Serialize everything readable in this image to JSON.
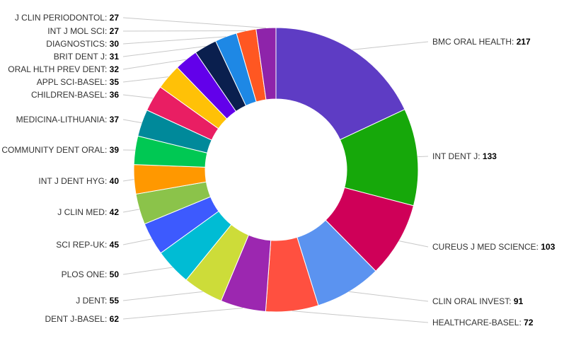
{
  "chart_data": {
    "type": "pie",
    "donut": true,
    "slices": [
      {
        "name": "BMC ORAL HEALTH",
        "value": 217,
        "color": "#5e3cc4"
      },
      {
        "name": "INT DENT J",
        "value": 133,
        "color": "#16a80a"
      },
      {
        "name": "CUREUS J MED SCIENCE",
        "value": 103,
        "color": "#cf0058"
      },
      {
        "name": "CLIN ORAL INVEST",
        "value": 91,
        "color": "#5b93f0"
      },
      {
        "name": "HEALTHCARE-BASEL",
        "value": 72,
        "color": "#ff5040"
      },
      {
        "name": "DENT J-BASEL",
        "value": 62,
        "color": "#9c27b0"
      },
      {
        "name": "J DENT",
        "value": 55,
        "color": "#cddc39"
      },
      {
        "name": "PLOS ONE",
        "value": 50,
        "color": "#00bcd4"
      },
      {
        "name": "SCI REP-UK",
        "value": 45,
        "color": "#3d5afe"
      },
      {
        "name": "J CLIN MED",
        "value": 42,
        "color": "#8bc34a"
      },
      {
        "name": "INT J DENT HYG",
        "value": 40,
        "color": "#ff9800"
      },
      {
        "name": "COMMUNITY DENT ORAL",
        "value": 39,
        "color": "#00c853"
      },
      {
        "name": "MEDICINA-LITHUANIA",
        "value": 37,
        "color": "#00899a"
      },
      {
        "name": "CHILDREN-BASEL",
        "value": 36,
        "color": "#e91e63"
      },
      {
        "name": "APPL SCI-BASEL",
        "value": 35,
        "color": "#ffc107"
      },
      {
        "name": "ORAL HLTH PREV DENT",
        "value": 32,
        "color": "#6200ea"
      },
      {
        "name": "BRIT DENT J",
        "value": 31,
        "color": "#0a1f4e"
      },
      {
        "name": "DIAGNOSTICS",
        "value": 30,
        "color": "#1e88e5"
      },
      {
        "name": "INT J MOL SCI",
        "value": 27,
        "color": "#ff5722"
      },
      {
        "name": "J CLIN PERIODONTOL",
        "value": 27,
        "color": "#8e24aa"
      }
    ]
  }
}
